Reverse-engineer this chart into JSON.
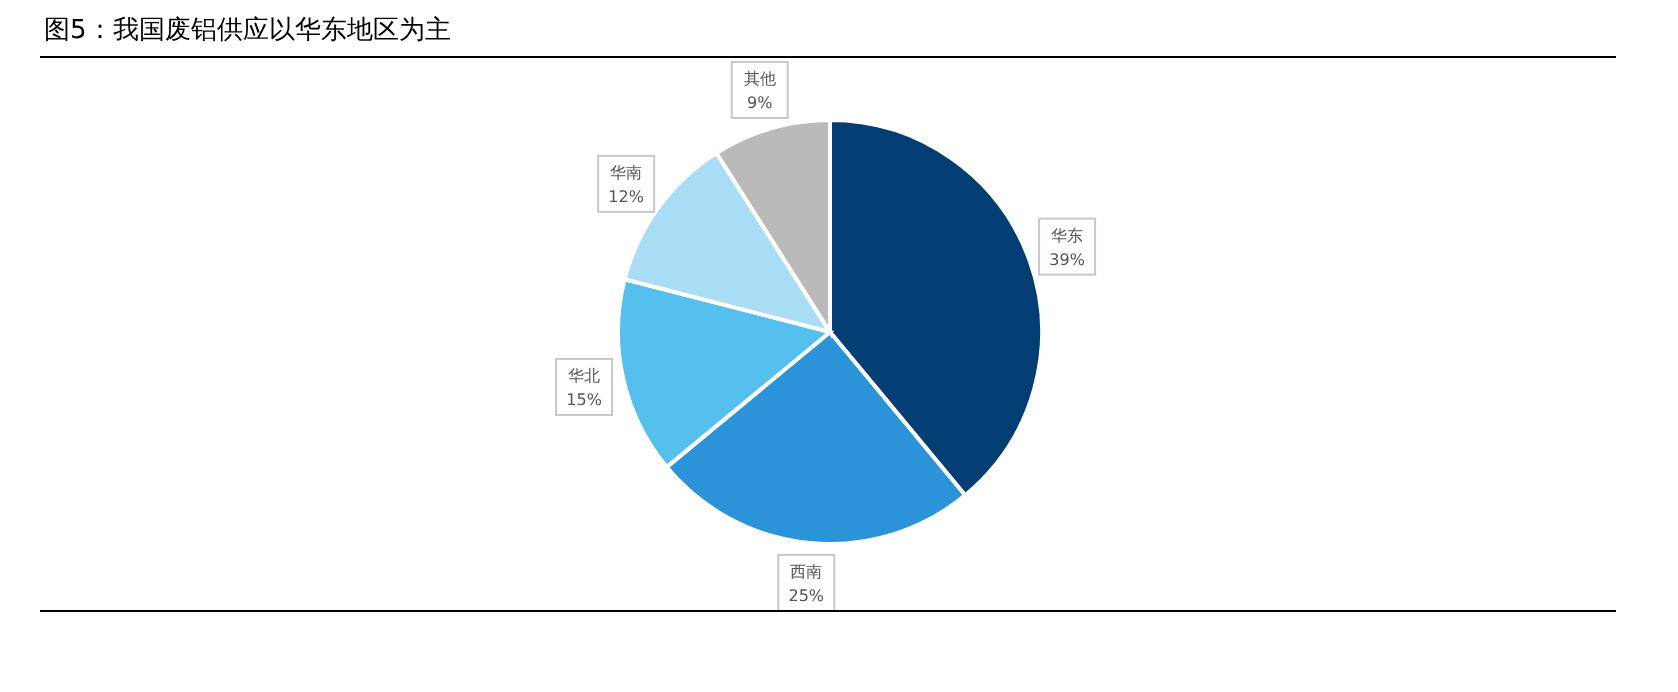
{
  "chart_data": {
    "type": "pie",
    "title": "图5：我国废铝供应以华东地区为主",
    "categories": [
      "华东",
      "西南",
      "华北",
      "华南",
      "其他"
    ],
    "values": [
      39,
      25,
      15,
      12,
      9
    ],
    "value_labels": [
      "39%",
      "25%",
      "15%",
      "12%",
      "9%"
    ],
    "colors": [
      "#023e73",
      "#2b94d9",
      "#55bfed",
      "#a8ddf5",
      "#bababa"
    ]
  }
}
